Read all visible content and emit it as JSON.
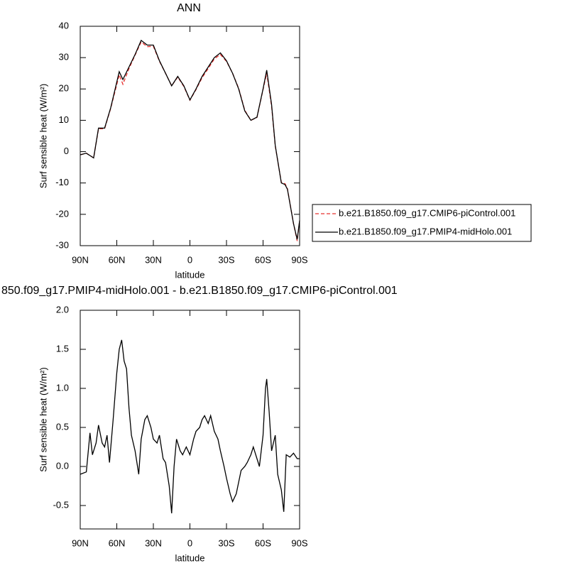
{
  "chart_data": [
    {
      "type": "line",
      "title": "ANN",
      "xlabel": "latitude",
      "ylabel": "Surf sensible heat (W/m²)",
      "xlim": [
        90,
        -90
      ],
      "xticks": [
        {
          "value": 90,
          "label": "90N"
        },
        {
          "value": 60,
          "label": "60N"
        },
        {
          "value": 30,
          "label": "30N"
        },
        0,
        {
          "value": -30,
          "label": "30S"
        },
        {
          "value": -60,
          "label": "60S"
        },
        {
          "value": -90,
          "label": "90S"
        }
      ],
      "ylim": [
        -30,
        40
      ],
      "yticks": [
        -30,
        -20,
        -10,
        0,
        10,
        20,
        30,
        40
      ],
      "x": [
        90,
        85,
        79,
        75,
        70,
        65,
        58,
        55,
        50,
        45,
        40,
        35,
        30,
        25,
        20,
        15,
        10,
        5,
        0,
        -5,
        -10,
        -15,
        -20,
        -25,
        -30,
        -35,
        -40,
        -45,
        -50,
        -55,
        -60,
        -63,
        -67,
        -70,
        -75,
        -78,
        -80,
        -85,
        -88,
        -90
      ],
      "series": [
        {
          "name": "b.e21.B1850.f09_g17.CMIP6-piControl.001",
          "color": "#e8312f",
          "line_style": "dashed",
          "values": [
            -1,
            -0.5,
            -2,
            7.3,
            7.3,
            13.8,
            24.5,
            21.5,
            26.5,
            30.8,
            35,
            33.5,
            33.6,
            28.8,
            25,
            21,
            23.8,
            20.8,
            16.4,
            19.8,
            23.6,
            26.5,
            29.6,
            31,
            28.8,
            25,
            20.2,
            13.2,
            10,
            10.9,
            19.8,
            25,
            14.5,
            1.8,
            -9.8,
            -10.2,
            -11.8,
            -23,
            -28.5,
            -22
          ]
        },
        {
          "name": "b.e21.B1850.f09_g17.PMIP4-midHolo.001",
          "color": "#000000",
          "line_style": "solid",
          "values": [
            -1,
            -0.5,
            -2,
            7.5,
            7.5,
            14,
            25.5,
            23,
            27,
            31,
            35.5,
            34,
            34,
            29,
            25,
            21,
            24,
            21,
            16.5,
            20,
            24,
            27,
            30,
            31.5,
            29,
            25,
            20,
            13,
            10,
            11,
            20,
            26,
            15,
            2,
            -10,
            -10.5,
            -12,
            -23,
            -28,
            -22
          ]
        }
      ]
    },
    {
      "type": "line",
      "title": "850.f09_g17.PMIP4-midHolo.001 - b.e21.B1850.f09_g17.CMIP6-piControl.001",
      "xlabel": "latitude",
      "ylabel": "Surf sensible heat (W/m²)",
      "xlim": [
        90,
        -90
      ],
      "xticks": [
        {
          "value": 90,
          "label": "90N"
        },
        {
          "value": 60,
          "label": "60N"
        },
        {
          "value": 30,
          "label": "30N"
        },
        0,
        {
          "value": -30,
          "label": "30S"
        },
        {
          "value": -60,
          "label": "60S"
        },
        {
          "value": -90,
          "label": "90S"
        }
      ],
      "ylim": [
        -0.8,
        2.0
      ],
      "yticks": [
        -0.5,
        {
          "value": 0,
          "label": "0.0"
        },
        0.5,
        {
          "value": 1,
          "label": "1.0"
        },
        1.5,
        {
          "value": 2,
          "label": "2.0"
        }
      ],
      "x": [
        90,
        85,
        82,
        80,
        77,
        75,
        72,
        70,
        68,
        66,
        63,
        60,
        58,
        56,
        54,
        52,
        50,
        48,
        45,
        42,
        40,
        37,
        35,
        32,
        30,
        27,
        25,
        22,
        20,
        17,
        15,
        13,
        11,
        8,
        6,
        3,
        0,
        -3,
        -5,
        -8,
        -10,
        -12,
        -15,
        -17,
        -20,
        -23,
        -25,
        -28,
        -30,
        -33,
        -35,
        -38,
        -40,
        -42,
        -45,
        -47,
        -50,
        -52,
        -55,
        -57,
        -60,
        -62,
        -63,
        -65,
        -67,
        -70,
        -72,
        -75,
        -77,
        -79,
        -82,
        -85,
        -88,
        -90
      ],
      "series": [
        {
          "color": "#000000",
          "line_style": "solid",
          "values": [
            -0.1,
            -0.07,
            0.43,
            0.15,
            0.3,
            0.53,
            0.3,
            0.25,
            0.4,
            0.05,
            0.6,
            1.2,
            1.5,
            1.62,
            1.35,
            1.25,
            0.75,
            0.4,
            0.2,
            -0.1,
            0.35,
            0.6,
            0.65,
            0.5,
            0.35,
            0.3,
            0.4,
            0.1,
            0.05,
            -0.25,
            -0.6,
            0.0,
            0.35,
            0.2,
            0.15,
            0.25,
            0.15,
            0.35,
            0.45,
            0.5,
            0.6,
            0.65,
            0.55,
            0.65,
            0.45,
            0.35,
            0.2,
            0.0,
            -0.15,
            -0.35,
            -0.45,
            -0.35,
            -0.2,
            -0.05,
            0.0,
            0.05,
            0.15,
            0.25,
            0.1,
            0.0,
            0.4,
            1.0,
            1.12,
            0.7,
            0.2,
            0.4,
            -0.1,
            -0.3,
            -0.58,
            0.15,
            0.12,
            0.17,
            0.1,
            0.1
          ]
        }
      ]
    }
  ]
}
